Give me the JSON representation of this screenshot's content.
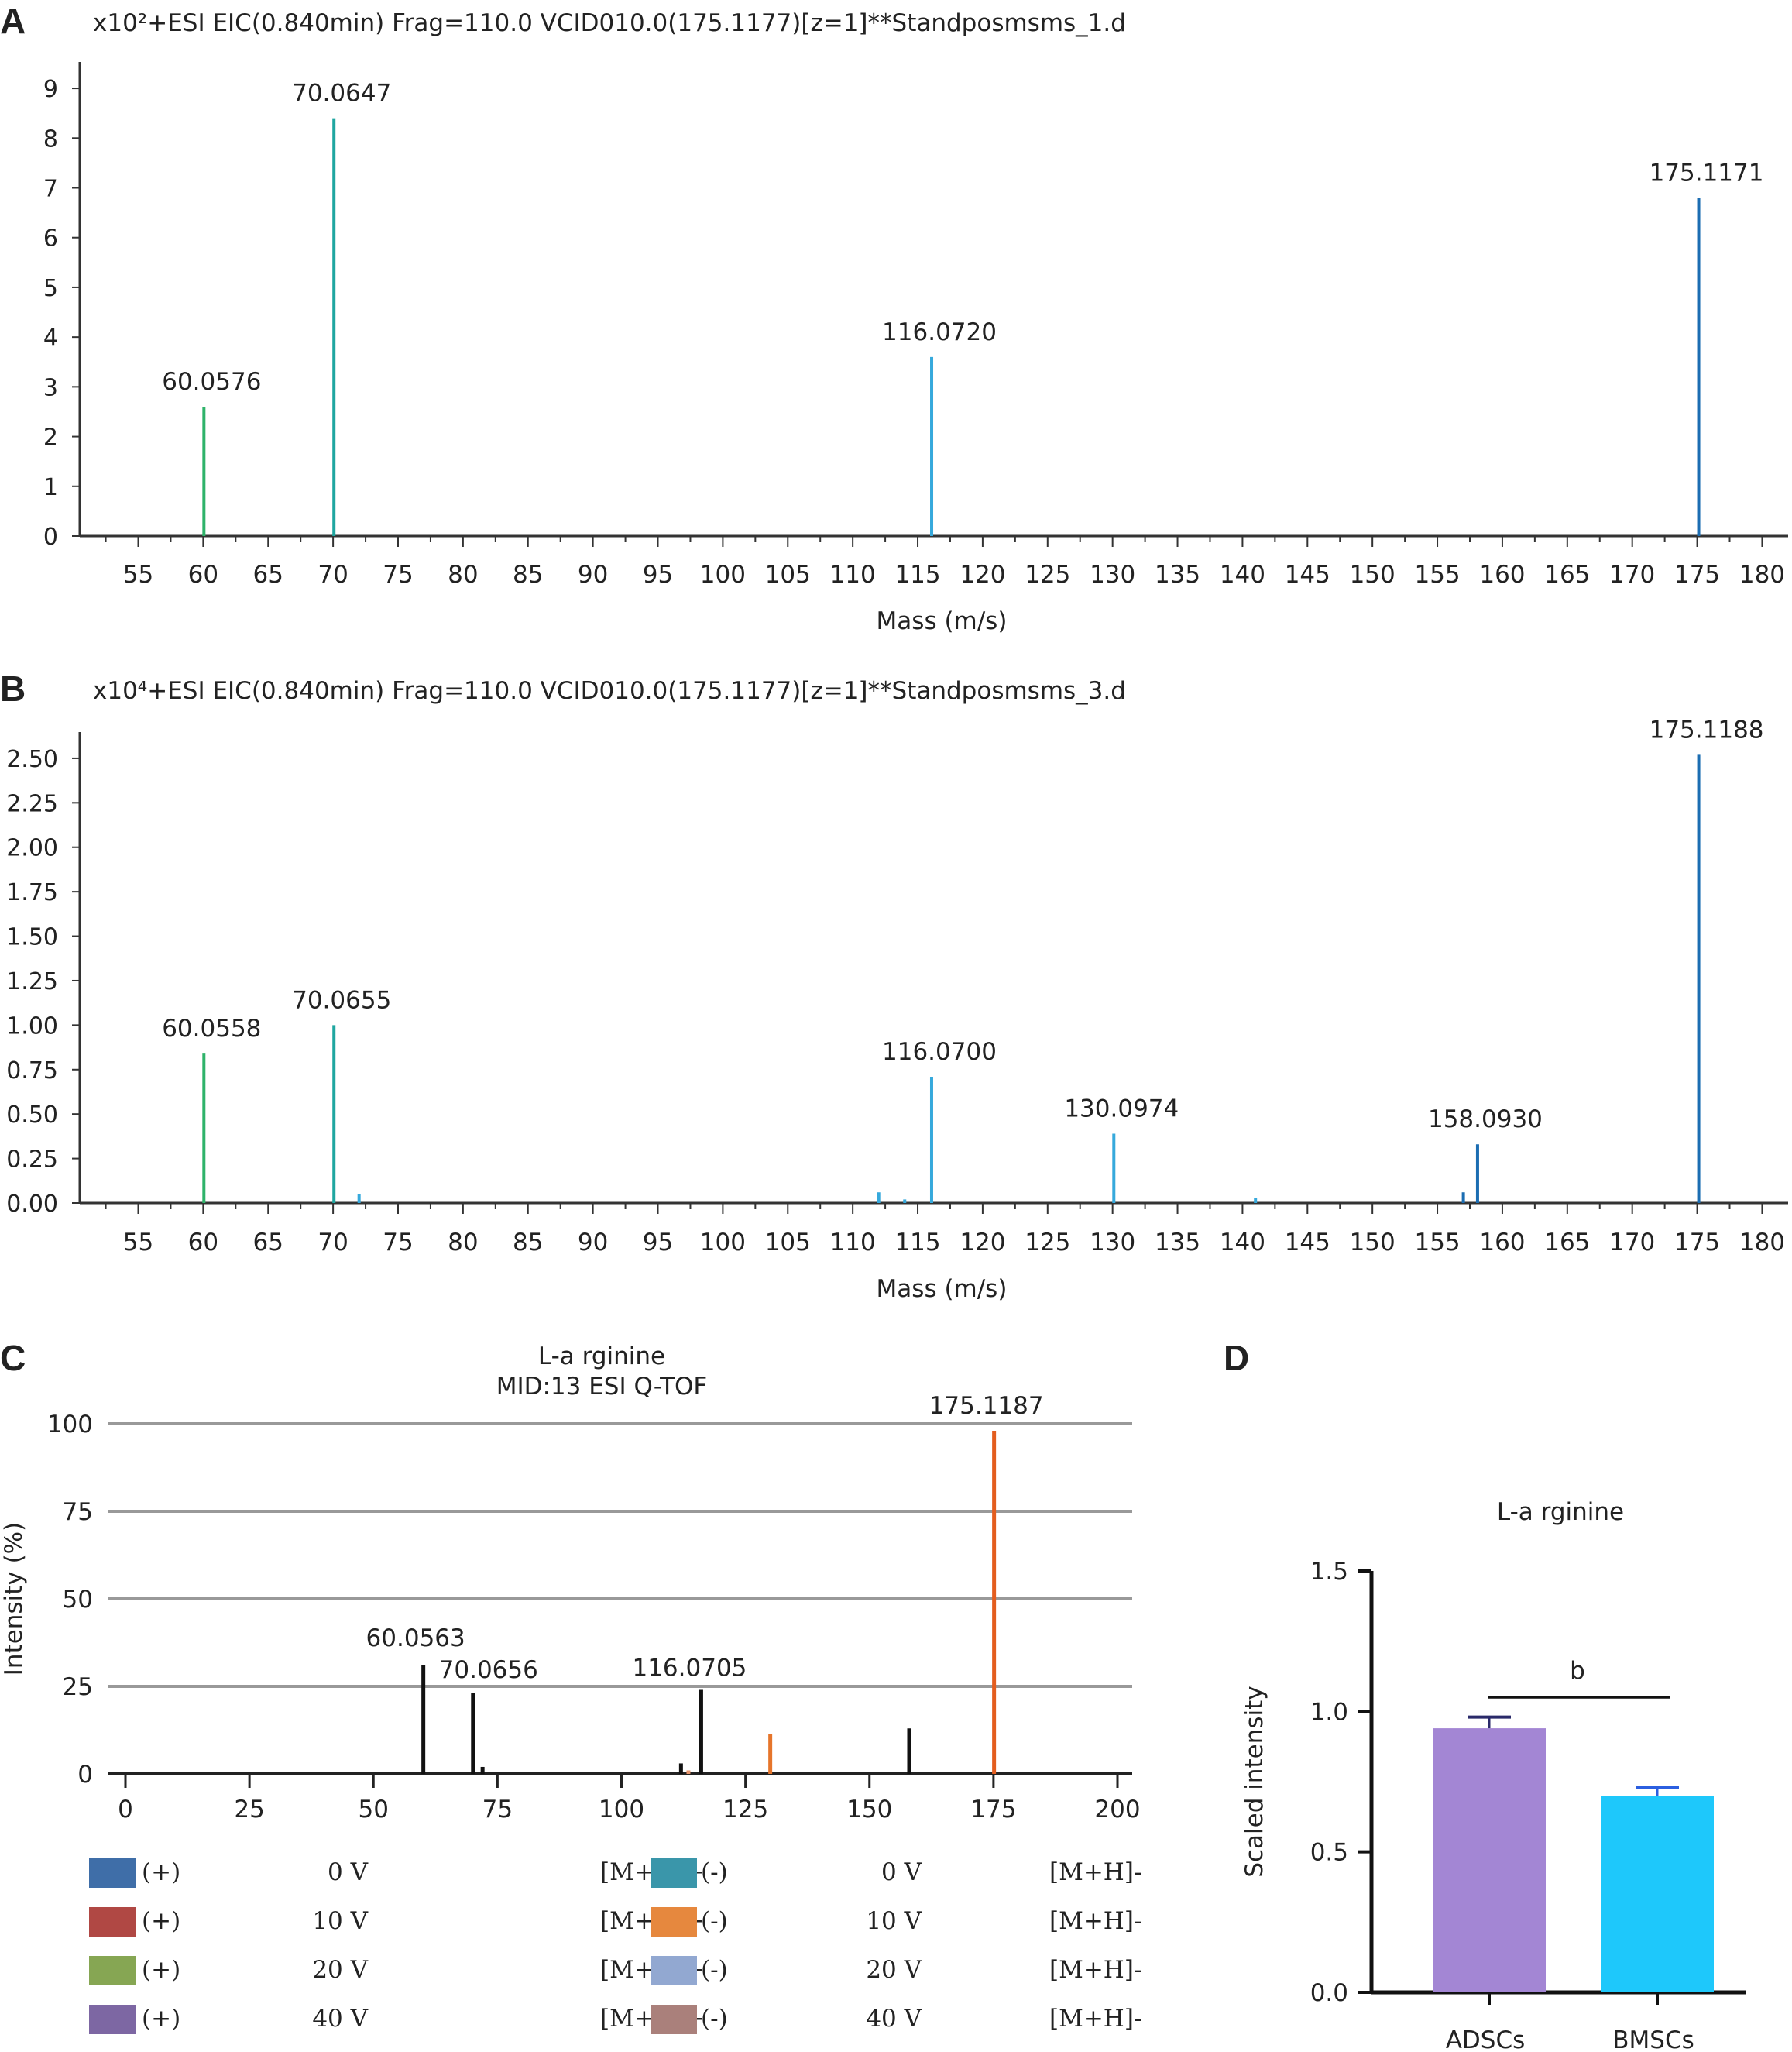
{
  "panels": {
    "a": {
      "letter": "A"
    },
    "b": {
      "letter": "B"
    },
    "c": {
      "letter": "C"
    },
    "d": {
      "letter": "D"
    }
  },
  "chart_data": [
    {
      "id": "a",
      "type": "bar",
      "title": "x10²+ESI EIC(0.840min) Frag=110.0 VCID010.0(175.1177)[z=1]**Standposmsms_1.d",
      "xlabel": "Mass (m/s)",
      "ylabel": "",
      "xlim": [
        50.5,
        182
      ],
      "ylim": [
        0,
        9
      ],
      "x_ticks": [
        55,
        60,
        65,
        70,
        75,
        80,
        85,
        90,
        95,
        100,
        105,
        110,
        115,
        120,
        125,
        130,
        135,
        140,
        145,
        150,
        155,
        160,
        165,
        170,
        175,
        180
      ],
      "y_ticks": [
        {
          "v": 0,
          "label": "0"
        },
        {
          "v": 1,
          "label": "1"
        },
        {
          "v": 2,
          "label": "2"
        },
        {
          "v": 3,
          "label": "3"
        },
        {
          "v": 4,
          "label": "4"
        },
        {
          "v": 5,
          "label": "5"
        },
        {
          "v": 6,
          "label": "6"
        },
        {
          "v": 7,
          "label": "7"
        },
        {
          "v": 8,
          "label": "8"
        },
        {
          "v": 9,
          "label": "9"
        }
      ],
      "peaks": [
        {
          "x": 60.0576,
          "y": 2.6,
          "label": "60.0576",
          "color": "#2fb36a"
        },
        {
          "x": 70.0647,
          "y": 8.4,
          "label": "70.0647",
          "color": "#1fa6a0"
        },
        {
          "x": 116.072,
          "y": 3.6,
          "label": "116.0720",
          "color": "#36a9dc"
        },
        {
          "x": 175.1171,
          "y": 6.8,
          "label": "175.1171",
          "color": "#1b6db2"
        }
      ]
    },
    {
      "id": "b",
      "type": "bar",
      "title": "x10⁴+ESI EIC(0.840min) Frag=110.0 VCID010.0(175.1177)[z=1]**Standposmsms_3.d",
      "xlabel": "Mass (m/s)",
      "ylabel": "",
      "xlim": [
        50.5,
        182
      ],
      "ylim": [
        0,
        2.5
      ],
      "x_ticks": [
        55,
        60,
        65,
        70,
        75,
        80,
        85,
        90,
        95,
        100,
        105,
        110,
        115,
        120,
        125,
        130,
        135,
        140,
        145,
        150,
        155,
        160,
        165,
        170,
        175,
        180
      ],
      "y_ticks": [
        {
          "v": 0,
          "label": "0.00"
        },
        {
          "v": 0.25,
          "label": "0.25"
        },
        {
          "v": 0.5,
          "label": "0.50"
        },
        {
          "v": 0.75,
          "label": "0.75"
        },
        {
          "v": 1,
          "label": "1.00"
        },
        {
          "v": 1.25,
          "label": "1.25"
        },
        {
          "v": 1.5,
          "label": "1.50"
        },
        {
          "v": 1.75,
          "label": "1.75"
        },
        {
          "v": 2,
          "label": "2.00"
        },
        {
          "v": 2.25,
          "label": "2.25"
        },
        {
          "v": 2.5,
          "label": "2.50"
        }
      ],
      "peaks": [
        {
          "x": 60.0558,
          "y": 0.84,
          "label": "60.0558",
          "color": "#2fb36a"
        },
        {
          "x": 70.0655,
          "y": 1.0,
          "label": "70.0655",
          "color": "#1fa6a0"
        },
        {
          "x": 72.0,
          "y": 0.05,
          "label": "",
          "color": "#36a9dc"
        },
        {
          "x": 112.0,
          "y": 0.06,
          "label": "",
          "color": "#36a9dc"
        },
        {
          "x": 114.0,
          "y": 0.02,
          "label": "",
          "color": "#36a9dc"
        },
        {
          "x": 116.07,
          "y": 0.71,
          "label": "116.0700",
          "color": "#36a9dc"
        },
        {
          "x": 130.0974,
          "y": 0.39,
          "label": "130.0974",
          "color": "#36a9dc"
        },
        {
          "x": 141.0,
          "y": 0.03,
          "label": "",
          "color": "#36a9dc"
        },
        {
          "x": 157.0,
          "y": 0.06,
          "label": "",
          "color": "#1b6db2"
        },
        {
          "x": 158.093,
          "y": 0.33,
          "label": "158.0930",
          "color": "#1b6db2"
        },
        {
          "x": 175.1188,
          "y": 2.52,
          "label": "175.1188",
          "color": "#1b6db2"
        }
      ]
    },
    {
      "id": "c",
      "type": "bar",
      "title": "L-a rginine",
      "subtitle": "MID:13    ESI Q-TOF",
      "xlabel": "",
      "ylabel": "Intensity (%)",
      "xlim": [
        0,
        200
      ],
      "ylim": [
        0,
        100
      ],
      "x_ticks": [
        0,
        25,
        50,
        75,
        100,
        125,
        150,
        175,
        200
      ],
      "y_ticks": [
        {
          "v": 0,
          "label": "0"
        },
        {
          "v": 25,
          "label": "25"
        },
        {
          "v": 50,
          "label": "50"
        },
        {
          "v": 75,
          "label": "75"
        },
        {
          "v": 100,
          "label": "100"
        }
      ],
      "grid": true,
      "peaks": [
        {
          "x": 60.0563,
          "y": 31,
          "label": "60.0563",
          "color": "#111111"
        },
        {
          "x": 70.0656,
          "y": 23,
          "label": "70.0656",
          "color": "#111111"
        },
        {
          "x": 72.0,
          "y": 2,
          "label": "",
          "color": "#111111"
        },
        {
          "x": 112.0,
          "y": 3,
          "label": "",
          "color": "#111111"
        },
        {
          "x": 113.5,
          "y": 1,
          "label": "",
          "color": "#e8946b"
        },
        {
          "x": 116.0705,
          "y": 24,
          "label": "116.0705",
          "color": "#111111"
        },
        {
          "x": 130.0,
          "y": 11.5,
          "label": "",
          "color": "#e6752b"
        },
        {
          "x": 158.0,
          "y": 13,
          "label": "",
          "color": "#111111"
        },
        {
          "x": 175.1187,
          "y": 98,
          "label": "175.1187",
          "color": "#e35d1e"
        }
      ],
      "legend": [
        [
          {
            "color": "#3f6ea8",
            "sign": "(+)",
            "voltage": "0 V",
            "ion": "[M+H]+"
          },
          {
            "color": "#3a96aa",
            "sign": "(-)",
            "voltage": "0 V",
            "ion": "[M+H]-"
          }
        ],
        [
          {
            "color": "#b04844",
            "sign": "(+)",
            "voltage": "10 V",
            "ion": "[M+H]+"
          },
          {
            "color": "#e6883e",
            "sign": "(-)",
            "voltage": "10 V",
            "ion": "[M+H]-"
          }
        ],
        [
          {
            "color": "#86a653",
            "sign": "(+)",
            "voltage": "20 V",
            "ion": "[M+H]+"
          },
          {
            "color": "#92a8d1",
            "sign": "(-)",
            "voltage": "20 V",
            "ion": "[M+H]-"
          }
        ],
        [
          {
            "color": "#7d67a3",
            "sign": "(+)",
            "voltage": "40 V",
            "ion": "[M+H]+"
          },
          {
            "color": "#aa807b",
            "sign": "(-)",
            "voltage": "40 V",
            "ion": "[M+H]-"
          }
        ]
      ]
    },
    {
      "id": "d",
      "type": "bar",
      "title": "L-a rginine",
      "xlabel": "",
      "ylabel": "Scaled intensity",
      "ylim": [
        0,
        1.5
      ],
      "y_ticks": [
        {
          "v": 0,
          "label": "0.0"
        },
        {
          "v": 0.5,
          "label": "0.5"
        },
        {
          "v": 1,
          "label": "1.0"
        },
        {
          "v": 1.5,
          "label": "1.5"
        }
      ],
      "categories": [
        "ADSCs",
        "BMSCs"
      ],
      "values": [
        0.94,
        0.7
      ],
      "errors": [
        0.04,
        0.03
      ],
      "colors": [
        "#a386d4",
        "#1ec8fb"
      ],
      "error_colors": [
        "#2a2a6a",
        "#2b5fe0"
      ],
      "significance": "b"
    }
  ]
}
